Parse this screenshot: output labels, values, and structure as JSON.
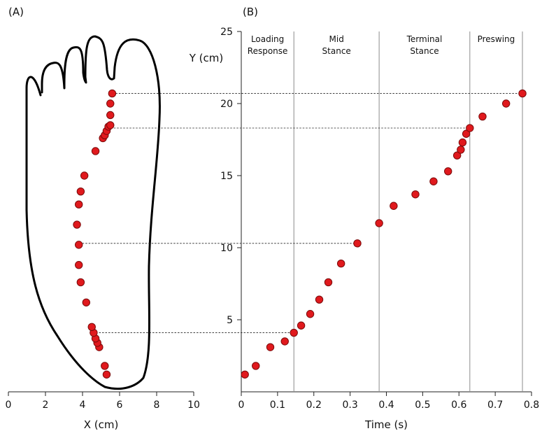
{
  "figure": {
    "panel_a_label": "(A)",
    "panel_b_label": "(B)"
  },
  "colors": {
    "point_fill": "#e0191d",
    "point_stroke": "#7a0a0a",
    "axis": "#222222",
    "phase_line": "#8c8c8c",
    "connector": "#222222",
    "foot_outline": "#000000"
  },
  "chart_data": [
    {
      "type": "scatter",
      "panel": "A",
      "xlabel": "X (cm)",
      "ylabel": "",
      "xlim": [
        0,
        10
      ],
      "x_ticks": [
        "0",
        "2",
        "4",
        "6",
        "8",
        "10"
      ],
      "points": [
        {
          "x": 5.3,
          "y": 1.2
        },
        {
          "x": 5.2,
          "y": 1.8
        },
        {
          "x": 4.9,
          "y": 3.1
        },
        {
          "x": 4.8,
          "y": 3.4
        },
        {
          "x": 4.7,
          "y": 3.7
        },
        {
          "x": 4.6,
          "y": 4.1
        },
        {
          "x": 4.5,
          "y": 4.5
        },
        {
          "x": 4.2,
          "y": 6.2
        },
        {
          "x": 3.9,
          "y": 7.6
        },
        {
          "x": 3.8,
          "y": 8.8
        },
        {
          "x": 3.8,
          "y": 10.2
        },
        {
          "x": 3.7,
          "y": 11.6
        },
        {
          "x": 3.8,
          "y": 13.0
        },
        {
          "x": 3.9,
          "y": 13.9
        },
        {
          "x": 4.1,
          "y": 15.0
        },
        {
          "x": 4.7,
          "y": 16.7
        },
        {
          "x": 5.1,
          "y": 17.6
        },
        {
          "x": 5.2,
          "y": 17.8
        },
        {
          "x": 5.3,
          "y": 18.1
        },
        {
          "x": 5.4,
          "y": 18.4
        },
        {
          "x": 5.5,
          "y": 18.5
        },
        {
          "x": 5.5,
          "y": 19.2
        },
        {
          "x": 5.5,
          "y": 20.0
        },
        {
          "x": 5.6,
          "y": 20.7
        }
      ]
    },
    {
      "type": "scatter",
      "panel": "B",
      "xlabel": "Time (s)",
      "ylabel": "Y (cm)",
      "xlim": [
        0,
        0.8
      ],
      "ylim": [
        0,
        25
      ],
      "x_ticks": [
        "0",
        "0.1",
        "0.2",
        "0.3",
        "0.4",
        "0.5",
        "0.6",
        "0.7",
        "0.8"
      ],
      "y_ticks": [
        "5",
        "10",
        "15",
        "20",
        "25"
      ],
      "phases": [
        {
          "label_line1": "Loading",
          "label_line2": "Response",
          "start": 0.0,
          "end": 0.145
        },
        {
          "label_line1": "Mid",
          "label_line2": "Stance",
          "start": 0.145,
          "end": 0.38
        },
        {
          "label_line1": "Terminal",
          "label_line2": "Stance",
          "start": 0.38,
          "end": 0.63
        },
        {
          "label_line1": "Preswing",
          "label_line2": "",
          "start": 0.63,
          "end": 0.775
        }
      ],
      "points": [
        {
          "x": 0.01,
          "y": 1.2
        },
        {
          "x": 0.04,
          "y": 1.8
        },
        {
          "x": 0.08,
          "y": 3.1
        },
        {
          "x": 0.12,
          "y": 3.5
        },
        {
          "x": 0.145,
          "y": 4.1
        },
        {
          "x": 0.165,
          "y": 4.6
        },
        {
          "x": 0.19,
          "y": 5.4
        },
        {
          "x": 0.215,
          "y": 6.4
        },
        {
          "x": 0.24,
          "y": 7.6
        },
        {
          "x": 0.275,
          "y": 8.9
        },
        {
          "x": 0.32,
          "y": 10.3
        },
        {
          "x": 0.38,
          "y": 11.7
        },
        {
          "x": 0.42,
          "y": 12.9
        },
        {
          "x": 0.48,
          "y": 13.7
        },
        {
          "x": 0.53,
          "y": 14.6
        },
        {
          "x": 0.57,
          "y": 15.3
        },
        {
          "x": 0.595,
          "y": 16.4
        },
        {
          "x": 0.605,
          "y": 16.8
        },
        {
          "x": 0.61,
          "y": 17.3
        },
        {
          "x": 0.62,
          "y": 17.9
        },
        {
          "x": 0.63,
          "y": 18.3
        },
        {
          "x": 0.665,
          "y": 19.1
        },
        {
          "x": 0.73,
          "y": 20.0
        },
        {
          "x": 0.775,
          "y": 20.7
        }
      ]
    }
  ]
}
